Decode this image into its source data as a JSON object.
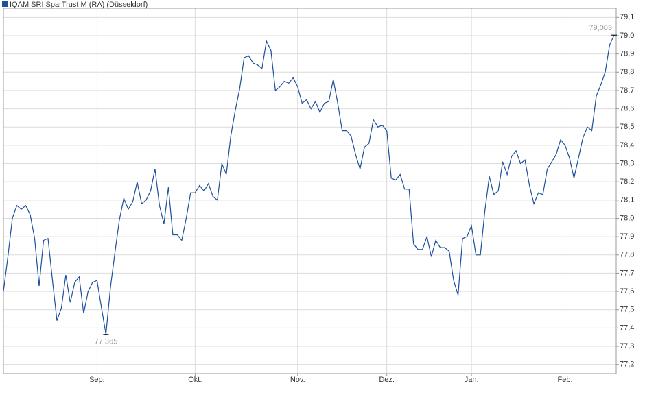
{
  "chart_data": {
    "type": "line",
    "series": [
      {
        "name": "IQAM SRI SparTrust M (RA) (Düsseldorf)",
        "color": "#1c4f9c",
        "values": [
          77.6,
          77.79,
          78.0,
          78.07,
          78.05,
          78.07,
          78.02,
          77.89,
          77.63,
          77.88,
          77.89,
          77.66,
          77.44,
          77.51,
          77.69,
          77.54,
          77.65,
          77.68,
          77.48,
          77.6,
          77.65,
          77.66,
          77.51,
          77.365,
          77.62,
          77.81,
          77.99,
          78.11,
          78.05,
          78.09,
          78.2,
          78.08,
          78.1,
          78.15,
          78.27,
          78.07,
          77.97,
          78.17,
          77.91,
          77.91,
          77.88,
          78.0,
          78.14,
          78.14,
          78.18,
          78.15,
          78.19,
          78.12,
          78.1,
          78.3,
          78.24,
          78.45,
          78.59,
          78.71,
          78.88,
          78.89,
          78.85,
          78.84,
          78.82,
          78.97,
          78.92,
          78.7,
          78.72,
          78.75,
          78.74,
          78.77,
          78.72,
          78.63,
          78.65,
          78.6,
          78.64,
          78.58,
          78.63,
          78.64,
          78.76,
          78.63,
          78.48,
          78.48,
          78.45,
          78.35,
          78.27,
          78.39,
          78.41,
          78.54,
          78.5,
          78.51,
          78.48,
          78.22,
          78.21,
          78.24,
          78.16,
          78.16,
          77.86,
          77.83,
          77.83,
          77.9,
          77.79,
          77.88,
          77.84,
          77.84,
          77.82,
          77.66,
          77.58,
          77.89,
          77.9,
          77.96,
          77.8,
          77.8,
          78.04,
          78.23,
          78.13,
          78.15,
          78.31,
          78.24,
          78.34,
          78.37,
          78.3,
          78.32,
          78.18,
          78.08,
          78.14,
          78.13,
          78.27,
          78.31,
          78.35,
          78.43,
          78.4,
          78.33,
          78.22,
          78.33,
          78.44,
          78.5,
          78.48,
          78.67,
          78.73,
          78.8,
          78.95,
          79.003
        ],
        "value_labels": [
          null,
          null,
          null,
          null,
          null,
          null,
          null,
          null,
          null,
          null,
          null,
          null,
          null,
          null,
          null,
          null,
          null,
          null,
          null,
          null,
          null,
          null,
          null,
          "77,365",
          null,
          null,
          null,
          null,
          null,
          null,
          null,
          null,
          null,
          null,
          null,
          null,
          null,
          null,
          null,
          null,
          null,
          null,
          null,
          null,
          null,
          null,
          null,
          null,
          null,
          null,
          null,
          null,
          null,
          null,
          null,
          null,
          null,
          null,
          null,
          null,
          null,
          null,
          null,
          null,
          null,
          null,
          null,
          null,
          null,
          null,
          null,
          null,
          null,
          null,
          null,
          null,
          null,
          null,
          null,
          null,
          null,
          null,
          null,
          null,
          null,
          null,
          null,
          null,
          null,
          null,
          null,
          null,
          null,
          null,
          null,
          null,
          null,
          null,
          null,
          null,
          null,
          null,
          null,
          null,
          null,
          null,
          null,
          null,
          null,
          null,
          null,
          null,
          null,
          null,
          null,
          null,
          null,
          null,
          null,
          null,
          null,
          null,
          null,
          null,
          null,
          null,
          null,
          null,
          null,
          null,
          null,
          null,
          null,
          null,
          null,
          null,
          null,
          "79,003"
        ]
      }
    ],
    "categories": [
      null,
      null,
      null,
      null,
      null,
      null,
      null,
      null,
      null,
      null,
      null,
      null,
      null,
      null,
      null,
      null,
      null,
      null,
      null,
      null,
      null,
      "Sep.",
      null,
      null,
      null,
      null,
      null,
      null,
      null,
      null,
      null,
      null,
      null,
      null,
      null,
      null,
      null,
      null,
      null,
      null,
      null,
      null,
      null,
      "Okt.",
      null,
      null,
      null,
      null,
      null,
      null,
      null,
      null,
      null,
      null,
      null,
      null,
      null,
      null,
      null,
      null,
      null,
      null,
      null,
      null,
      null,
      null,
      "Nov.",
      null,
      null,
      null,
      null,
      null,
      null,
      null,
      null,
      null,
      null,
      null,
      null,
      null,
      null,
      null,
      null,
      null,
      null,
      null,
      "Dez.",
      null,
      null,
      null,
      null,
      null,
      null,
      null,
      null,
      null,
      null,
      null,
      null,
      null,
      null,
      null,
      null,
      null,
      null,
      "Jan.",
      null,
      null,
      null,
      null,
      null,
      null,
      null,
      null,
      null,
      null,
      null,
      null,
      null,
      null,
      null,
      null,
      null,
      null,
      null,
      null,
      "Feb.",
      null,
      null,
      null,
      null,
      null,
      null,
      null,
      null,
      null,
      null,
      null
    ],
    "ylim": [
      77.15,
      79.15
    ],
    "yticks": [
      {
        "value": 77.2,
        "label": "77,2"
      },
      {
        "value": 77.3,
        "label": "77,3"
      },
      {
        "value": 77.4,
        "label": "77,4"
      },
      {
        "value": 77.5,
        "label": "77,5"
      },
      {
        "value": 77.6,
        "label": "77,6"
      },
      {
        "value": 77.7,
        "label": "77,7"
      },
      {
        "value": 77.8,
        "label": "77,8"
      },
      {
        "value": 77.9,
        "label": "77,9"
      },
      {
        "value": 78.0,
        "label": "78,0"
      },
      {
        "value": 78.1,
        "label": "78,1"
      },
      {
        "value": 78.2,
        "label": "78,2"
      },
      {
        "value": 78.3,
        "label": "78,3"
      },
      {
        "value": 78.4,
        "label": "78,4"
      },
      {
        "value": 78.5,
        "label": "78,5"
      },
      {
        "value": 78.6,
        "label": "78,6"
      },
      {
        "value": 78.7,
        "label": "78,7"
      },
      {
        "value": 78.8,
        "label": "78,8"
      },
      {
        "value": 78.9,
        "label": "78,9"
      },
      {
        "value": 79.0,
        "label": "79,0"
      },
      {
        "value": 79.1,
        "label": "79,1"
      }
    ],
    "grid": true
  }
}
